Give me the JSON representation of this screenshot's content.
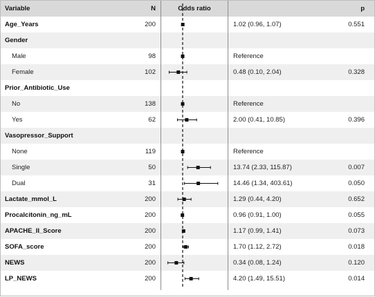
{
  "headers": {
    "variable": "Variable",
    "n": "N",
    "odds_ratio": "Odds ratio",
    "p": "p"
  },
  "colors": {
    "header_bg": "#d9d9d9",
    "stripe_bg": "#efefef",
    "marker": "#111111"
  },
  "chart_data": {
    "type": "forest",
    "x_scale": "log",
    "reference_value": 1,
    "rows": [
      {
        "label": "Age_Years",
        "group": true,
        "n": "200",
        "or": 1.02,
        "lo": 0.96,
        "hi": 1.07,
        "ci_text": "1.02 (0.96, 1.07)",
        "p": "0.551"
      },
      {
        "label": "Gender",
        "group": true,
        "n": "",
        "or": null,
        "lo": null,
        "hi": null,
        "ci_text": "",
        "p": ""
      },
      {
        "label": "Male",
        "group": false,
        "n": "98",
        "or": 1,
        "lo": 1,
        "hi": 1,
        "ci_text": "Reference",
        "p": ""
      },
      {
        "label": "Female",
        "group": false,
        "n": "102",
        "or": 0.48,
        "lo": 0.1,
        "hi": 2.04,
        "ci_text": "0.48 (0.10, 2.04)",
        "p": "0.328"
      },
      {
        "label": "Prior_Antibiotic_Use",
        "group": true,
        "n": "",
        "or": null,
        "lo": null,
        "hi": null,
        "ci_text": "",
        "p": ""
      },
      {
        "label": "No",
        "group": false,
        "n": "138",
        "or": 1,
        "lo": 1,
        "hi": 1,
        "ci_text": "Reference",
        "p": ""
      },
      {
        "label": "Yes",
        "group": false,
        "n": "62",
        "or": 2.0,
        "lo": 0.41,
        "hi": 10.85,
        "ci_text": "2.00 (0.41, 10.85)",
        "p": "0.396"
      },
      {
        "label": "Vasopressor_Support",
        "group": true,
        "n": "",
        "or": null,
        "lo": null,
        "hi": null,
        "ci_text": "",
        "p": ""
      },
      {
        "label": "None",
        "group": false,
        "n": "119",
        "or": 1,
        "lo": 1,
        "hi": 1,
        "ci_text": "Reference",
        "p": ""
      },
      {
        "label": "Single",
        "group": false,
        "n": "50",
        "or": 13.74,
        "lo": 2.33,
        "hi": 115.87,
        "ci_text": "13.74 (2.33, 115.87)",
        "p": "0.007"
      },
      {
        "label": "Dual",
        "group": false,
        "n": "31",
        "or": 14.46,
        "lo": 1.34,
        "hi": 403.61,
        "ci_text": "14.46 (1.34, 403.61)",
        "p": "0.050"
      },
      {
        "label": "Lactate_mmol_L",
        "group": true,
        "n": "200",
        "or": 1.29,
        "lo": 0.44,
        "hi": 4.2,
        "ci_text": "1.29 (0.44, 4.20)",
        "p": "0.652"
      },
      {
        "label": "Procalcitonin_ng_mL",
        "group": true,
        "n": "200",
        "or": 0.96,
        "lo": 0.91,
        "hi": 1.0,
        "ci_text": "0.96 (0.91, 1.00)",
        "p": "0.055"
      },
      {
        "label": "APACHE_II_Score",
        "group": true,
        "n": "200",
        "or": 1.17,
        "lo": 0.99,
        "hi": 1.41,
        "ci_text": "1.17 (0.99, 1.41)",
        "p": "0.073"
      },
      {
        "label": "SOFA_score",
        "group": true,
        "n": "200",
        "or": 1.7,
        "lo": 1.12,
        "hi": 2.72,
        "ci_text": "1.70 (1.12, 2.72)",
        "p": "0.018"
      },
      {
        "label": "NEWS",
        "group": true,
        "n": "200",
        "or": 0.34,
        "lo": 0.08,
        "hi": 1.24,
        "ci_text": "0.34 (0.08, 1.24)",
        "p": "0.120"
      },
      {
        "label": "LP_NEWS",
        "group": true,
        "n": "200",
        "or": 4.2,
        "lo": 1.49,
        "hi": 15.51,
        "ci_text": "4.20 (1.49, 15.51)",
        "p": "0.014"
      }
    ]
  }
}
